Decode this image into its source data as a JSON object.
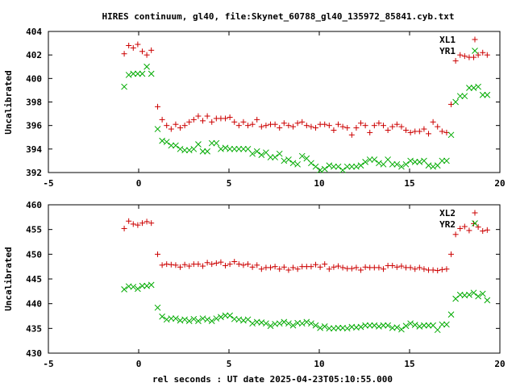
{
  "figure": {
    "title": "HIRES continuum, gl40, file:Skynet_60788_gl40_135972_85841.cyb.txt",
    "xlabel": "rel seconds : UT date 2025-04-23T05:10:55.000"
  },
  "chart_data": [
    {
      "type": "scatter",
      "ylabel": "Uncalibrated",
      "xlim": [
        -5,
        20
      ],
      "ylim": [
        392,
        404
      ],
      "xticks": [
        "-5",
        "0",
        "5",
        "10",
        "15",
        "20"
      ],
      "yticks": [
        "392",
        "394",
        "396",
        "398",
        "400",
        "402",
        "404"
      ],
      "x": [
        -0.8,
        -0.55,
        -0.3,
        -0.05,
        0.2,
        0.45,
        0.7,
        1.05,
        1.3,
        1.55,
        1.8,
        2.05,
        2.3,
        2.55,
        2.8,
        3.05,
        3.3,
        3.55,
        3.8,
        4.05,
        4.3,
        4.55,
        4.8,
        5.05,
        5.3,
        5.55,
        5.8,
        6.05,
        6.3,
        6.55,
        6.8,
        7.05,
        7.3,
        7.55,
        7.8,
        8.05,
        8.3,
        8.55,
        8.8,
        9.05,
        9.3,
        9.55,
        9.8,
        10.05,
        10.3,
        10.55,
        10.8,
        11.05,
        11.3,
        11.55,
        11.8,
        12.05,
        12.3,
        12.55,
        12.8,
        13.05,
        13.3,
        13.55,
        13.8,
        14.05,
        14.3,
        14.55,
        14.8,
        15.05,
        15.3,
        15.55,
        15.8,
        16.05,
        16.3,
        16.55,
        16.8,
        17.05,
        17.3,
        17.55,
        17.8,
        18.05,
        18.3,
        18.55,
        18.8,
        19.05,
        19.3
      ],
      "series": [
        {
          "name": "XL1",
          "color": "#cc0000",
          "marker": "plus",
          "values": [
            402.1,
            402.8,
            402.6,
            402.9,
            402.3,
            402.0,
            402.4,
            397.6,
            396.5,
            396.0,
            395.7,
            396.1,
            395.8,
            396.0,
            396.3,
            396.5,
            396.8,
            396.4,
            396.8,
            396.3,
            396.6,
            396.6,
            396.6,
            396.7,
            396.3,
            396.0,
            396.3,
            396.0,
            396.1,
            396.5,
            395.9,
            396.0,
            396.1,
            396.1,
            395.8,
            396.2,
            396.0,
            395.9,
            396.2,
            396.3,
            396.0,
            395.9,
            395.8,
            396.1,
            396.1,
            396.0,
            395.6,
            396.1,
            395.9,
            395.8,
            395.2,
            395.8,
            396.2,
            396.0,
            395.4,
            396.0,
            396.2,
            396.0,
            395.6,
            395.9,
            396.1,
            395.9,
            395.6,
            395.4,
            395.5,
            395.5,
            395.7,
            395.3,
            396.3,
            395.9,
            395.5,
            395.4,
            397.8,
            401.5,
            402.0,
            401.9,
            401.8,
            401.8,
            402.0,
            402.2,
            402.0
          ]
        },
        {
          "name": "YR1",
          "color": "#00aa00",
          "marker": "cross",
          "values": [
            399.3,
            400.3,
            400.4,
            400.4,
            400.4,
            401.0,
            400.4,
            395.7,
            394.7,
            394.6,
            394.3,
            394.3,
            394.0,
            393.9,
            393.9,
            394.0,
            394.4,
            393.8,
            393.8,
            394.5,
            394.5,
            394.0,
            394.1,
            394.0,
            394.0,
            394.0,
            394.0,
            394.0,
            393.6,
            393.8,
            393.5,
            393.7,
            393.3,
            393.3,
            393.6,
            393.0,
            393.1,
            392.8,
            392.7,
            393.4,
            393.2,
            392.8,
            392.5,
            392.2,
            392.3,
            392.6,
            392.5,
            392.5,
            392.2,
            392.5,
            392.5,
            392.5,
            392.6,
            392.9,
            393.1,
            393.1,
            392.8,
            392.7,
            393.1,
            392.7,
            392.7,
            392.5,
            392.7,
            393.0,
            392.9,
            392.9,
            393.0,
            392.6,
            392.5,
            392.6,
            393.0,
            393.0,
            395.2,
            398.0,
            398.5,
            398.5,
            399.2,
            399.2,
            399.3,
            398.6,
            398.6
          ]
        }
      ],
      "legend": "top-right"
    },
    {
      "type": "scatter",
      "ylabel": "Uncalibrated",
      "xlim": [
        -5,
        20
      ],
      "ylim": [
        430,
        460
      ],
      "xticks": [
        "-5",
        "0",
        "5",
        "10",
        "15",
        "20"
      ],
      "yticks": [
        "430",
        "435",
        "440",
        "445",
        "450",
        "455",
        "460"
      ],
      "x": [
        -0.8,
        -0.55,
        -0.3,
        -0.05,
        0.2,
        0.45,
        0.7,
        1.05,
        1.3,
        1.55,
        1.8,
        2.05,
        2.3,
        2.55,
        2.8,
        3.05,
        3.3,
        3.55,
        3.8,
        4.05,
        4.3,
        4.55,
        4.8,
        5.05,
        5.3,
        5.55,
        5.8,
        6.05,
        6.3,
        6.55,
        6.8,
        7.05,
        7.3,
        7.55,
        7.8,
        8.05,
        8.3,
        8.55,
        8.8,
        9.05,
        9.3,
        9.55,
        9.8,
        10.05,
        10.3,
        10.55,
        10.8,
        11.05,
        11.3,
        11.55,
        11.8,
        12.05,
        12.3,
        12.55,
        12.8,
        13.05,
        13.3,
        13.55,
        13.8,
        14.05,
        14.3,
        14.55,
        14.8,
        15.05,
        15.3,
        15.55,
        15.8,
        16.05,
        16.3,
        16.55,
        16.8,
        17.05,
        17.3,
        17.55,
        17.8,
        18.05,
        18.3,
        18.55,
        18.8,
        19.05,
        19.3
      ],
      "series": [
        {
          "name": "XL2",
          "color": "#cc0000",
          "marker": "plus",
          "values": [
            455.2,
            456.7,
            456.1,
            455.9,
            456.3,
            456.6,
            456.3,
            450.0,
            447.8,
            448.0,
            447.9,
            447.8,
            447.4,
            447.9,
            447.6,
            448.0,
            448.0,
            447.6,
            448.3,
            448.0,
            448.2,
            448.4,
            447.7,
            448.0,
            448.5,
            448.0,
            447.8,
            448.0,
            447.4,
            447.8,
            447.0,
            447.3,
            447.3,
            447.5,
            447.0,
            447.4,
            446.8,
            447.3,
            447.0,
            447.5,
            447.5,
            447.5,
            447.9,
            447.4,
            448.0,
            447.0,
            447.4,
            447.6,
            447.3,
            447.1,
            447.1,
            447.3,
            446.8,
            447.4,
            447.3,
            447.3,
            447.3,
            447.0,
            447.7,
            447.7,
            447.4,
            447.6,
            447.3,
            447.3,
            447.0,
            447.3,
            447.0,
            446.8,
            446.8,
            446.7,
            446.9,
            447.0,
            450.0,
            454.0,
            455.2,
            455.6,
            454.8,
            456.2,
            455.5,
            454.7,
            454.9
          ]
        },
        {
          "name": "YR2",
          "color": "#00aa00",
          "marker": "cross",
          "values": [
            442.9,
            443.5,
            443.4,
            443.0,
            443.6,
            443.6,
            443.8,
            439.2,
            437.4,
            436.8,
            437.0,
            437.0,
            436.6,
            436.8,
            436.5,
            436.9,
            436.5,
            437.0,
            436.8,
            436.5,
            437.0,
            437.3,
            437.6,
            437.6,
            436.9,
            436.8,
            436.6,
            436.8,
            436.0,
            436.3,
            436.2,
            436.0,
            435.5,
            435.9,
            436.0,
            436.3,
            436.0,
            435.6,
            436.1,
            436.0,
            436.3,
            436.0,
            435.6,
            435.1,
            435.4,
            435.0,
            435.0,
            435.1,
            435.1,
            435.0,
            435.3,
            435.2,
            435.3,
            435.6,
            435.6,
            435.6,
            435.4,
            435.6,
            435.6,
            435.1,
            435.2,
            434.8,
            435.5,
            436.0,
            435.7,
            435.4,
            435.6,
            435.6,
            435.6,
            434.7,
            435.8,
            435.8,
            437.8,
            441.0,
            441.8,
            441.7,
            441.8,
            442.2,
            441.5,
            442.0,
            440.7
          ]
        }
      ],
      "legend": "top-right"
    }
  ]
}
